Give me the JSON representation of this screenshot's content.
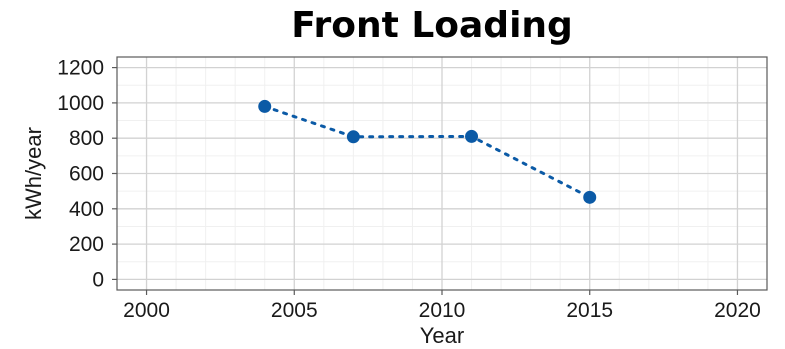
{
  "chart_data": {
    "type": "line",
    "title": "Front Loading",
    "xlabel": "Year",
    "ylabel": "kWh/year",
    "xlim": [
      1999,
      2021
    ],
    "ylim": [
      -60,
      1260
    ],
    "xticks": [
      2000,
      2005,
      2010,
      2015,
      2020
    ],
    "yticks": [
      0,
      200,
      400,
      600,
      800,
      1000,
      1200
    ],
    "grid": true,
    "legend": "none",
    "series": [
      {
        "color": "#0b5aa6",
        "line_style": "dotted",
        "marker": "circle",
        "x": [
          2004,
          2007,
          2011,
          2015
        ],
        "y": [
          980,
          808,
          810,
          465
        ]
      }
    ]
  }
}
